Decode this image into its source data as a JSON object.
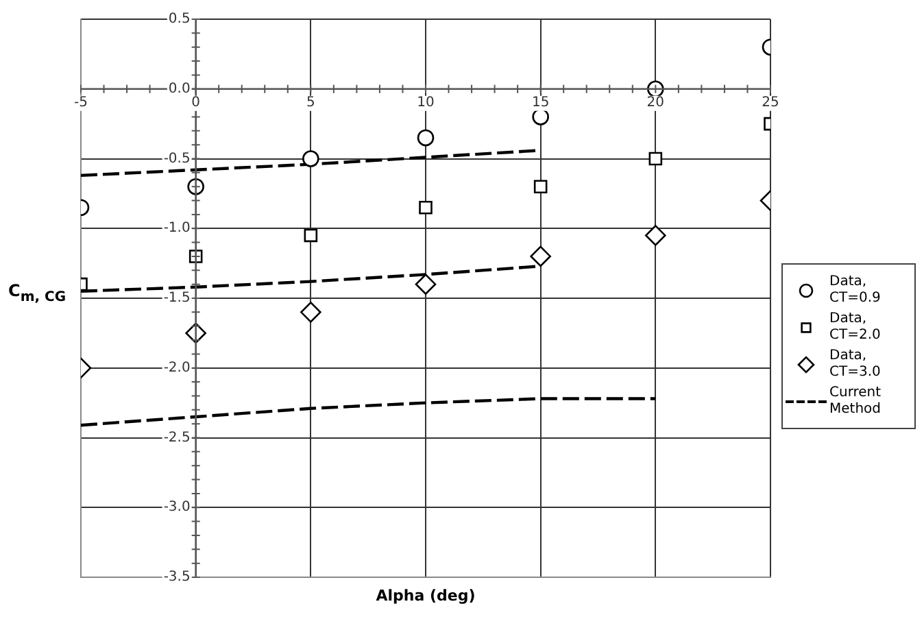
{
  "chart_data": {
    "type": "scatter",
    "xlabel": "Alpha (deg)",
    "ylabel": "C$_{m, CG}$",
    "xlim": [
      -5,
      25
    ],
    "xticks": [
      -5,
      0,
      5,
      10,
      15,
      20,
      25
    ],
    "ylim": [
      -3.5,
      0.5
    ],
    "yticks": [
      -3.5,
      {
        "value": -3,
        "label": "-3.0"
      },
      -2.5,
      {
        "value": -2,
        "label": "-2.0"
      },
      -1.5,
      {
        "value": -1,
        "label": "-1.0"
      },
      -0.5,
      {
        "value": 0,
        "label": "0.0"
      },
      0.5
    ],
    "grid": true,
    "legend": "right",
    "series": [
      {
        "name": "Data, CT=0.9",
        "color": "#000000",
        "marker": "circle",
        "x": [
          -5,
          0,
          5,
          10,
          15,
          20,
          25
        ],
        "values": [
          -0.85,
          -0.7,
          -0.5,
          -0.35,
          -0.2,
          0.0,
          0.3
        ]
      },
      {
        "name": "Data, CT=2.0",
        "color": "#000000",
        "marker": "square",
        "x": [
          -5,
          0,
          5,
          10,
          15,
          20,
          25
        ],
        "values": [
          -1.4,
          -1.2,
          -1.05,
          -0.85,
          -0.7,
          -0.5,
          -0.25
        ]
      },
      {
        "name": "Data, CT=3.0",
        "color": "#000000",
        "marker": "diamond",
        "x": [
          -5,
          0,
          5,
          10,
          15,
          20,
          25
        ],
        "values": [
          -2.0,
          -1.75,
          -1.6,
          -1.4,
          -1.2,
          -1.05,
          -0.8
        ]
      },
      {
        "name": "Current Method",
        "type": "line",
        "color": "#000000",
        "marker": "none",
        "line_style": "dashed",
        "x": [
          -5,
          0,
          5,
          10,
          15
        ],
        "values": [
          -0.62,
          -0.58,
          -0.54,
          -0.49,
          -0.44
        ]
      },
      {
        "type": "line",
        "color": "#000000",
        "marker": "none",
        "line_style": "dashed",
        "x": [
          -5,
          0,
          5,
          10,
          15
        ],
        "values": [
          -1.45,
          -1.42,
          -1.38,
          -1.33,
          -1.27
        ]
      },
      {
        "type": "line",
        "color": "#000000",
        "marker": "none",
        "line_style": "dashed",
        "x": [
          -5,
          0,
          5,
          10,
          15,
          20
        ],
        "values": [
          -2.41,
          -2.35,
          -2.29,
          -2.25,
          -2.22,
          -2.22
        ]
      }
    ]
  }
}
